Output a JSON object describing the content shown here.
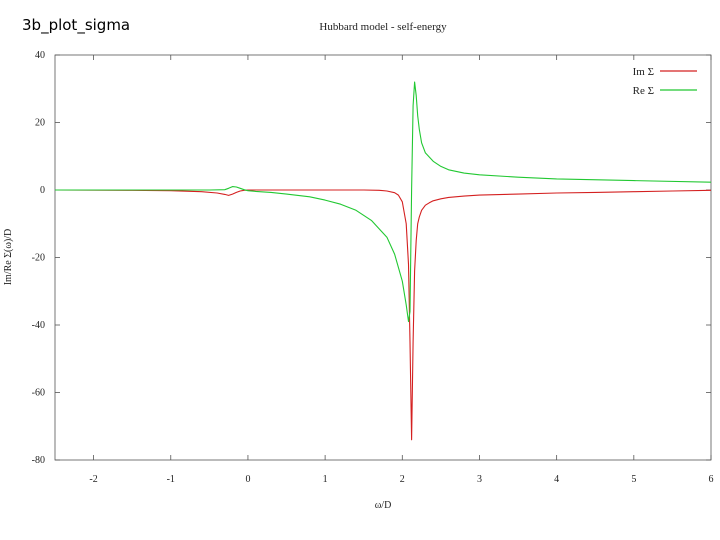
{
  "slide": {
    "label": "3b_plot_sigma"
  },
  "chart_data": {
    "type": "line",
    "title": "Hubbard model - self-energy",
    "xlabel": "ω/D",
    "ylabel": "Im/Re Σ(ω)/D",
    "xlim": [
      -2.5,
      6
    ],
    "ylim": [
      -80,
      40
    ],
    "xticks": [
      -2,
      -1,
      0,
      1,
      2,
      3,
      4,
      5,
      6
    ],
    "yticks": [
      40,
      20,
      0,
      -20,
      -40,
      -60,
      -80
    ],
    "grid": false,
    "legend_position": "top-right",
    "series": [
      {
        "name": "Im Σ",
        "color": "#d42020",
        "x": [
          -2.5,
          -1.5,
          -1.0,
          -0.6,
          -0.4,
          -0.3,
          -0.25,
          -0.2,
          -0.15,
          -0.1,
          -0.05,
          0.0,
          0.2,
          0.5,
          1.0,
          1.5,
          1.7,
          1.8,
          1.9,
          1.95,
          2.0,
          2.05,
          2.08,
          2.1,
          2.12,
          2.14,
          2.16,
          2.18,
          2.2,
          2.22,
          2.25,
          2.3,
          2.35,
          2.4,
          2.5,
          2.6,
          2.8,
          3.0,
          3.5,
          4.0,
          4.5,
          5.0,
          5.5,
          6.0
        ],
        "y": [
          0,
          -0.1,
          -0.2,
          -0.5,
          -0.9,
          -1.3,
          -1.6,
          -1.2,
          -0.7,
          -0.3,
          -0.1,
          0,
          0,
          0,
          0,
          0,
          -0.1,
          -0.3,
          -0.8,
          -1.5,
          -3.5,
          -10,
          -22,
          -45,
          -74,
          -45,
          -24,
          -15,
          -10,
          -8,
          -6,
          -4.5,
          -3.8,
          -3.2,
          -2.6,
          -2.2,
          -1.8,
          -1.5,
          -1.2,
          -0.9,
          -0.7,
          -0.5,
          -0.3,
          -0.1
        ]
      },
      {
        "name": "Re Σ",
        "color": "#22c832",
        "x": [
          -2.5,
          -1.5,
          -1.0,
          -0.5,
          -0.3,
          -0.25,
          -0.2,
          -0.15,
          -0.1,
          -0.05,
          0.0,
          0.1,
          0.3,
          0.5,
          0.8,
          1.0,
          1.2,
          1.4,
          1.6,
          1.8,
          1.9,
          2.0,
          2.05,
          2.08,
          2.1,
          2.12,
          2.14,
          2.16,
          2.18,
          2.2,
          2.22,
          2.25,
          2.3,
          2.4,
          2.5,
          2.6,
          2.8,
          3.0,
          3.5,
          4.0,
          5.0,
          6.0
        ],
        "y": [
          0,
          0,
          0,
          0,
          0.1,
          0.5,
          1.0,
          0.9,
          0.5,
          0.1,
          -0.2,
          -0.4,
          -0.7,
          -1.2,
          -2.0,
          -3.0,
          -4.2,
          -6.0,
          -9.0,
          -14,
          -19,
          -27,
          -34,
          -39,
          -36,
          0,
          25,
          32,
          28,
          22,
          18,
          14,
          11,
          8.5,
          7.0,
          6.0,
          5.0,
          4.5,
          3.8,
          3.3,
          2.8,
          2.3
        ]
      }
    ]
  }
}
